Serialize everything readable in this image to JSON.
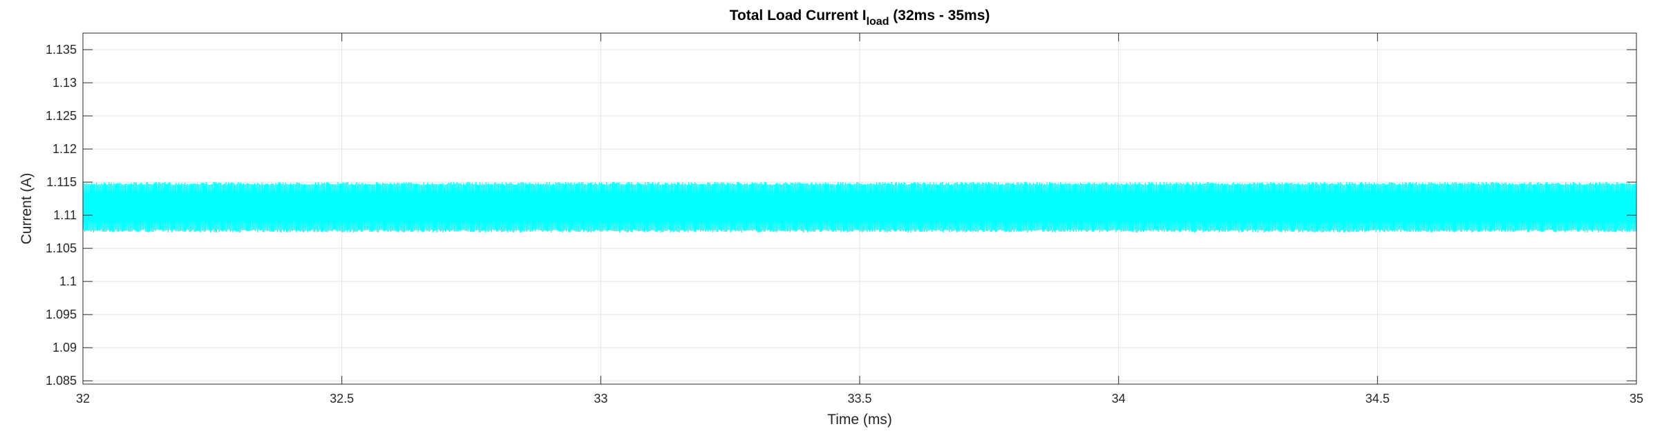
{
  "chart_data": {
    "type": "line",
    "title": {
      "prefix": "Total Load Current I",
      "subscript": "load",
      "suffix": " (32ms - 35ms)"
    },
    "xlabel": "Time (ms)",
    "ylabel": "Current (A)",
    "xlim": [
      32,
      35
    ],
    "ylim": [
      1.0845,
      1.1375
    ],
    "x_ticks": [
      "32",
      "32.5",
      "33",
      "33.5",
      "34",
      "34.5",
      "35"
    ],
    "y_ticks": [
      "1.085",
      "1.09",
      "1.095",
      "1.1",
      "1.105",
      "1.11",
      "1.115",
      "1.12",
      "1.125",
      "1.13",
      "1.135"
    ],
    "grid": true,
    "series": [
      {
        "color": "#00ffff",
        "ripple_min": 1.1074,
        "ripple_max": 1.115,
        "x_start": 32,
        "x_end": 35,
        "shape": "high-frequency triangular ripple"
      }
    ]
  }
}
